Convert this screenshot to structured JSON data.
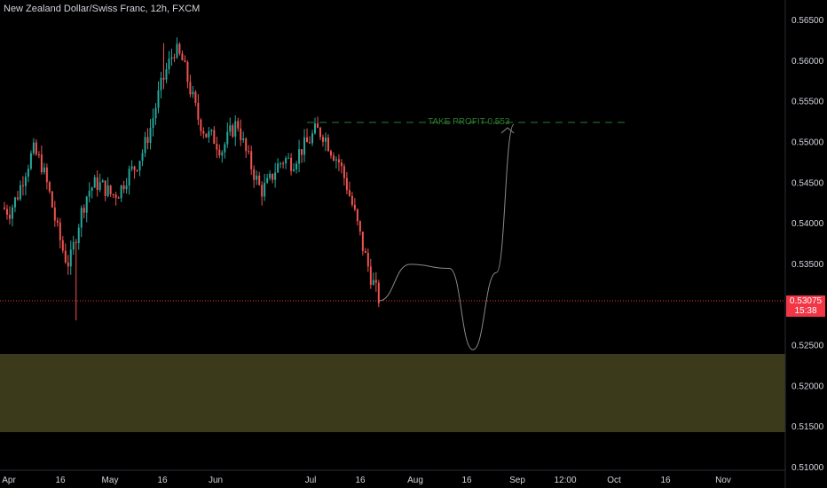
{
  "header": {
    "title": "New Zealand Dollar/Swiss Franc, 12h, FXCM"
  },
  "annotation": {
    "take_profit_label": "TAKE PROFIT 0.553",
    "take_profit_price": 0.5525
  },
  "current_price": {
    "value": "0.53075",
    "countdown": "15:38",
    "numeric": 0.5308
  },
  "demand_zone": {
    "top": 0.524,
    "bottom": 0.5145
  },
  "colors": {
    "up": "#26a69a",
    "down": "#ef5350",
    "zone": "#3b3a1a",
    "tp": "#2e7d32",
    "last": "#f23645",
    "projection": "#8a8a8a"
  },
  "chart_data": {
    "type": "candlestick",
    "title": "New Zealand Dollar/Swiss Franc, 12h, FXCM",
    "ylim": [
      0.5095,
      0.567
    ],
    "y_ticks": [
      "0.56500",
      "0.56000",
      "0.55500",
      "0.55000",
      "0.54500",
      "0.54000",
      "0.53500",
      "0.53000",
      "0.52500",
      "0.52000",
      "0.51500",
      "0.51000"
    ],
    "x_ticks": [
      "Apr",
      "16",
      "May",
      "16",
      "Jun",
      "Jul",
      "16",
      "Aug",
      "16",
      "Sep",
      "12:00",
      "Oct",
      "16",
      "Nov"
    ],
    "path_points": [
      [
        0.0,
        0.542
      ],
      [
        0.5,
        0.5415
      ],
      [
        1.0,
        0.5435
      ],
      [
        1.5,
        0.5465
      ],
      [
        2.0,
        0.549
      ],
      [
        2.5,
        0.5475
      ],
      [
        3.0,
        0.544
      ],
      [
        3.5,
        0.5395
      ],
      [
        4.0,
        0.536
      ],
      [
        4.3,
        0.535
      ],
      [
        4.6,
        0.5375
      ],
      [
        5.0,
        0.541
      ],
      [
        5.5,
        0.544
      ],
      [
        6.0,
        0.545
      ],
      [
        6.5,
        0.5445
      ],
      [
        7.0,
        0.5435
      ],
      [
        7.5,
        0.544
      ],
      [
        8.0,
        0.546
      ],
      [
        8.5,
        0.547
      ],
      [
        9.0,
        0.549
      ],
      [
        9.5,
        0.552
      ],
      [
        10.0,
        0.556
      ],
      [
        10.5,
        0.559
      ],
      [
        11.0,
        0.5615
      ],
      [
        11.5,
        0.56
      ],
      [
        12.0,
        0.5565
      ],
      [
        12.5,
        0.553
      ],
      [
        13.0,
        0.551
      ],
      [
        13.5,
        0.5505
      ],
      [
        14.0,
        0.549
      ],
      [
        14.5,
        0.551
      ],
      [
        15.0,
        0.5525
      ],
      [
        15.5,
        0.549
      ],
      [
        16.0,
        0.5465
      ],
      [
        16.5,
        0.544
      ],
      [
        17.0,
        0.545
      ],
      [
        17.5,
        0.547
      ],
      [
        18.0,
        0.548
      ],
      [
        18.5,
        0.5475
      ],
      [
        19.0,
        0.549
      ],
      [
        19.5,
        0.55
      ],
      [
        20.0,
        0.5515
      ],
      [
        20.5,
        0.551
      ],
      [
        21.0,
        0.549
      ],
      [
        21.5,
        0.5475
      ],
      [
        22.0,
        0.5445
      ],
      [
        22.5,
        0.541
      ],
      [
        23.0,
        0.537
      ],
      [
        23.5,
        0.5335
      ],
      [
        24.0,
        0.5308
      ]
    ],
    "projection": [
      [
        24,
        0.5305
      ],
      [
        26.0,
        0.535
      ],
      [
        28.5,
        0.5345
      ],
      [
        30.0,
        0.5245
      ],
      [
        31.5,
        0.534
      ],
      [
        32.6,
        0.5522
      ]
    ]
  }
}
